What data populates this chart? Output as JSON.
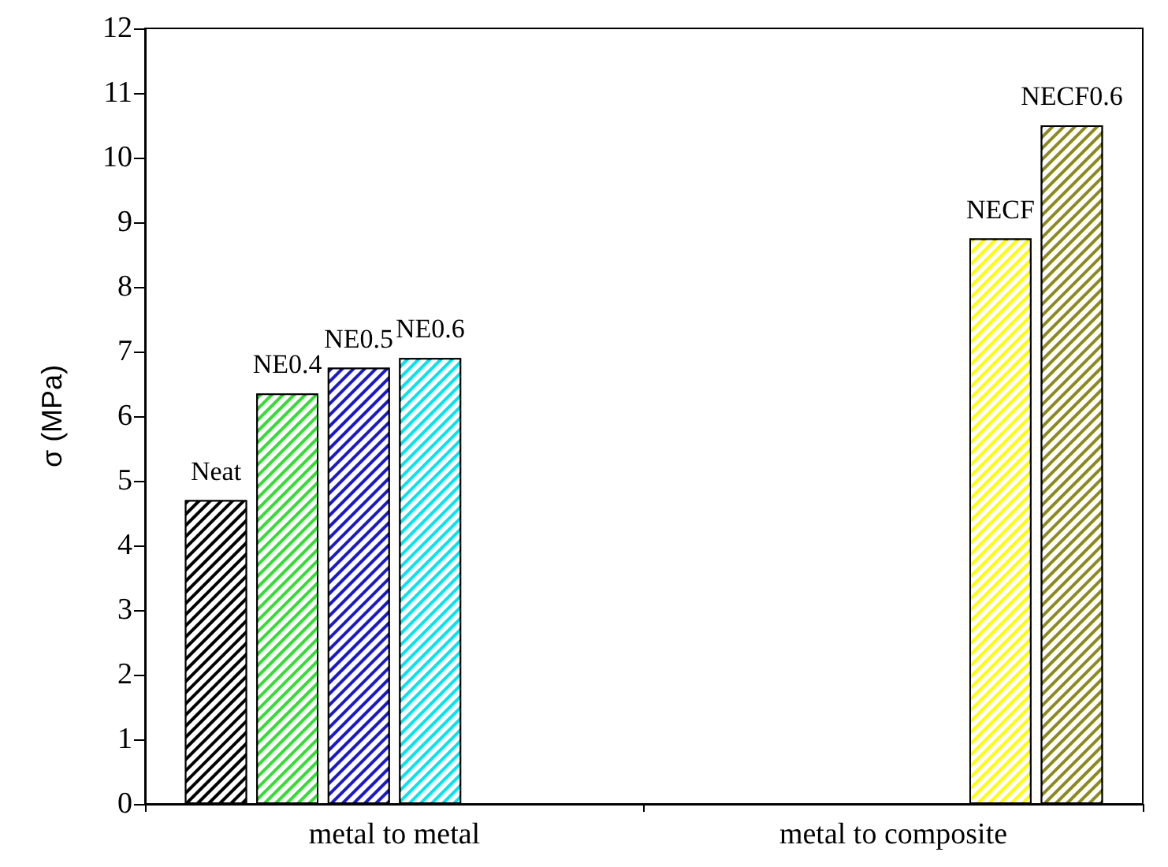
{
  "chart_data": {
    "type": "bar",
    "ylabel": "σ (MPa)",
    "categories": [
      "metal to metal",
      "metal to composite"
    ],
    "series": [
      {
        "name": "Neat",
        "color": "#000000",
        "values": [
          4.7,
          null
        ]
      },
      {
        "name": "NE0.4",
        "color": "#33dd33",
        "values": [
          6.35,
          null
        ]
      },
      {
        "name": "NE0.5",
        "color": "#1a1acc",
        "values": [
          6.75,
          null
        ]
      },
      {
        "name": "NE0.6",
        "color": "#00e5ee",
        "values": [
          6.9,
          null
        ]
      },
      {
        "name": "NECF",
        "color": "#ffff00",
        "values": [
          null,
          8.75
        ]
      },
      {
        "name": "NECF0.6",
        "color": "#8c8a1e",
        "values": [
          null,
          10.5
        ]
      }
    ],
    "ylim": [
      0,
      12
    ],
    "yticks": [
      0,
      1,
      2,
      3,
      4,
      5,
      6,
      7,
      8,
      9,
      10,
      11,
      12
    ],
    "grid": false,
    "legend": false
  }
}
